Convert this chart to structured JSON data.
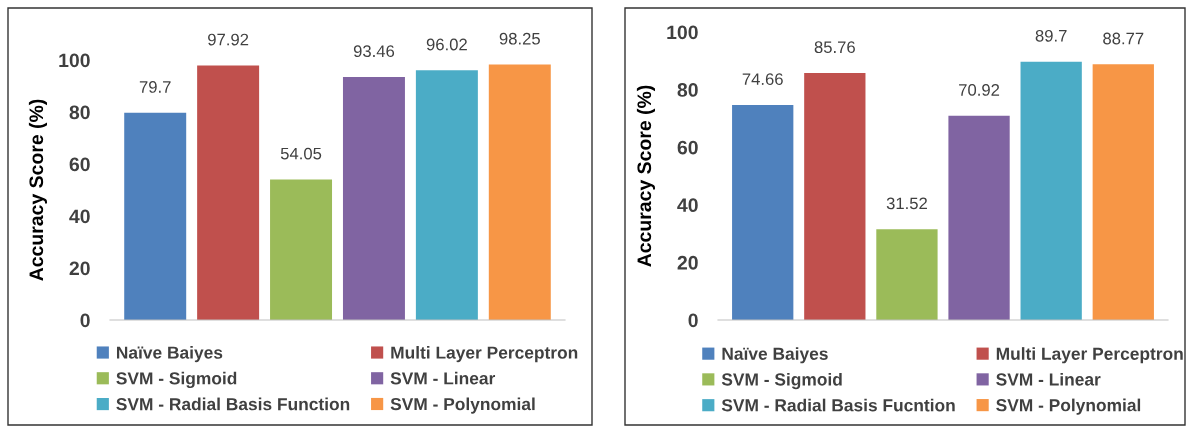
{
  "chart_data": [
    {
      "type": "bar",
      "ylabel": "Accuracy Score (%)",
      "categories": [
        null
      ],
      "ylim": [
        0,
        100
      ],
      "yticks": [
        0,
        20,
        40,
        60,
        80,
        100
      ],
      "grid": false,
      "legend": "bottom",
      "data_labels": true,
      "series": [
        {
          "name": "Naïve Baiyes",
          "color": "#4f81bd",
          "values": [
            79.7
          ]
        },
        {
          "name": "Multi Layer Perceptron",
          "color": "#c0504d",
          "values": [
            97.92
          ]
        },
        {
          "name": "SVM - Sigmoid",
          "color": "#9bbb59",
          "values": [
            54.05
          ]
        },
        {
          "name": "SVM - Linear",
          "color": "#8064a2",
          "values": [
            93.46
          ]
        },
        {
          "name": "SVM - Radial Basis Function",
          "color": "#4bacc6",
          "values": [
            96.02
          ]
        },
        {
          "name": "SVM - Polynomial",
          "color": "#f79646",
          "values": [
            98.25
          ]
        }
      ]
    },
    {
      "type": "bar",
      "ylabel": "Accuracy Score (%)",
      "categories": [
        null
      ],
      "ylim": [
        0,
        100
      ],
      "yticks": [
        0,
        20,
        40,
        60,
        80,
        100
      ],
      "grid": false,
      "legend": "bottom",
      "data_labels": true,
      "series": [
        {
          "name": "Naïve Baiyes",
          "color": "#4f81bd",
          "values": [
            74.66
          ]
        },
        {
          "name": "Multi Layer Perceptron",
          "color": "#c0504d",
          "values": [
            85.76
          ]
        },
        {
          "name": "SVM - Sigmoid",
          "color": "#9bbb59",
          "values": [
            31.52
          ]
        },
        {
          "name": "SVM - Linear",
          "color": "#8064a2",
          "values": [
            70.92
          ]
        },
        {
          "name": "SVM - Radial Basis Fucntion",
          "color": "#4bacc6",
          "values": [
            89.7
          ]
        },
        {
          "name": "SVM - Polynomial",
          "color": "#f79646",
          "values": [
            88.77
          ]
        }
      ]
    }
  ]
}
